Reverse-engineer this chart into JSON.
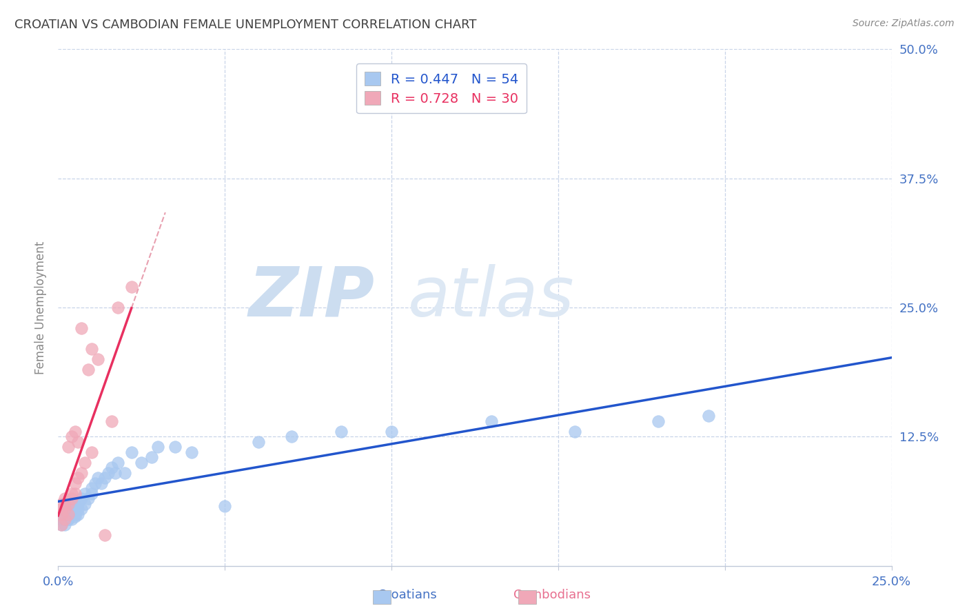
{
  "title": "CROATIAN VS CAMBODIAN FEMALE UNEMPLOYMENT CORRELATION CHART",
  "source": "Source: ZipAtlas.com",
  "ylabel": "Female Unemployment",
  "xlim": [
    0.0,
    0.25
  ],
  "ylim": [
    0.0,
    0.5
  ],
  "xticks": [
    0.0,
    0.05,
    0.1,
    0.15,
    0.2,
    0.25
  ],
  "yticks": [
    0.0,
    0.125,
    0.25,
    0.375,
    0.5
  ],
  "ytick_labels_right": [
    "",
    "12.5%",
    "25.0%",
    "37.5%",
    "50.0%"
  ],
  "xtick_labels": [
    "0.0%",
    "",
    "",
    "",
    "",
    "25.0%"
  ],
  "croatians_R": 0.447,
  "croatians_N": 54,
  "cambodians_R": 0.728,
  "cambodians_N": 30,
  "croatian_color": "#a8c8f0",
  "cambodian_color": "#f0a8b8",
  "croatian_line_color": "#2255cc",
  "cambodian_line_color": "#e83060",
  "cambodian_dash_color": "#e8a0b0",
  "grid_color": "#c8d4e8",
  "title_color": "#404040",
  "label_color": "#4472c4",
  "background_color": "#ffffff",
  "croatians_x": [
    0.001,
    0.001,
    0.001,
    0.002,
    0.002,
    0.002,
    0.002,
    0.003,
    0.003,
    0.003,
    0.003,
    0.003,
    0.004,
    0.004,
    0.004,
    0.004,
    0.005,
    0.005,
    0.005,
    0.005,
    0.006,
    0.006,
    0.006,
    0.007,
    0.007,
    0.008,
    0.008,
    0.009,
    0.01,
    0.01,
    0.011,
    0.012,
    0.013,
    0.014,
    0.015,
    0.016,
    0.017,
    0.018,
    0.02,
    0.022,
    0.025,
    0.028,
    0.03,
    0.035,
    0.04,
    0.05,
    0.06,
    0.07,
    0.085,
    0.1,
    0.13,
    0.155,
    0.18,
    0.195
  ],
  "croatians_y": [
    0.04,
    0.05,
    0.045,
    0.04,
    0.055,
    0.045,
    0.05,
    0.045,
    0.05,
    0.055,
    0.045,
    0.05,
    0.05,
    0.055,
    0.045,
    0.06,
    0.05,
    0.055,
    0.06,
    0.048,
    0.055,
    0.06,
    0.05,
    0.055,
    0.065,
    0.06,
    0.07,
    0.065,
    0.07,
    0.075,
    0.08,
    0.085,
    0.08,
    0.085,
    0.09,
    0.095,
    0.09,
    0.1,
    0.09,
    0.11,
    0.1,
    0.105,
    0.115,
    0.115,
    0.11,
    0.058,
    0.12,
    0.125,
    0.13,
    0.13,
    0.14,
    0.13,
    0.14,
    0.145
  ],
  "cambodians_x": [
    0.001,
    0.001,
    0.001,
    0.001,
    0.002,
    0.002,
    0.002,
    0.002,
    0.003,
    0.003,
    0.003,
    0.004,
    0.004,
    0.004,
    0.005,
    0.005,
    0.005,
    0.006,
    0.006,
    0.007,
    0.007,
    0.008,
    0.009,
    0.01,
    0.01,
    0.012,
    0.014,
    0.016,
    0.018,
    0.022
  ],
  "cambodians_y": [
    0.04,
    0.05,
    0.055,
    0.06,
    0.045,
    0.055,
    0.06,
    0.065,
    0.05,
    0.06,
    0.115,
    0.065,
    0.07,
    0.125,
    0.07,
    0.08,
    0.13,
    0.085,
    0.12,
    0.09,
    0.23,
    0.1,
    0.19,
    0.11,
    0.21,
    0.2,
    0.03,
    0.14,
    0.25,
    0.27
  ]
}
